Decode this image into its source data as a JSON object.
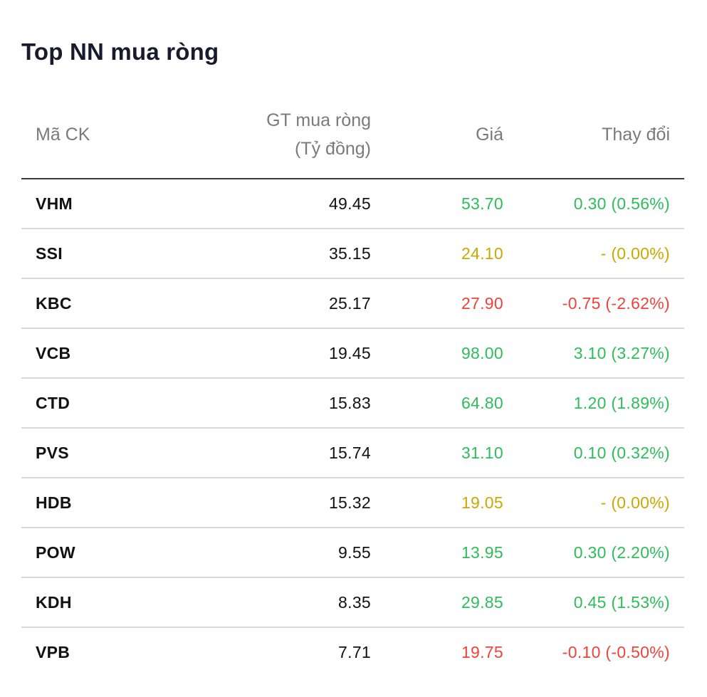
{
  "title": "Top NN mua ròng",
  "colors": {
    "up": "#2ebd5a",
    "ref": "#c9a900",
    "down": "#f0423a"
  },
  "headers": {
    "code": "Mã CK",
    "gt_line1": "GT mua ròng",
    "gt_line2": "(Tỷ đồng)",
    "price": "Giá",
    "change": "Thay đổi"
  },
  "rows": [
    {
      "code": "VHM",
      "gt": "49.45",
      "price": "53.70",
      "change": "0.30 (0.56%)",
      "status": "up"
    },
    {
      "code": "SSI",
      "gt": "35.15",
      "price": "24.10",
      "change": "- (0.00%)",
      "status": "ref"
    },
    {
      "code": "KBC",
      "gt": "25.17",
      "price": "27.90",
      "change": "-0.75 (-2.62%)",
      "status": "down"
    },
    {
      "code": "VCB",
      "gt": "19.45",
      "price": "98.00",
      "change": "3.10 (3.27%)",
      "status": "up"
    },
    {
      "code": "CTD",
      "gt": "15.83",
      "price": "64.80",
      "change": "1.20 (1.89%)",
      "status": "up"
    },
    {
      "code": "PVS",
      "gt": "15.74",
      "price": "31.10",
      "change": "0.10 (0.32%)",
      "status": "up"
    },
    {
      "code": "HDB",
      "gt": "15.32",
      "price": "19.05",
      "change": "- (0.00%)",
      "status": "ref"
    },
    {
      "code": "POW",
      "gt": "9.55",
      "price": "13.95",
      "change": "0.30 (2.20%)",
      "status": "up"
    },
    {
      "code": "KDH",
      "gt": "8.35",
      "price": "29.85",
      "change": "0.45 (1.53%)",
      "status": "up"
    },
    {
      "code": "VPB",
      "gt": "7.71",
      "price": "19.75",
      "change": "-0.10 (-0.50%)",
      "status": "down"
    }
  ]
}
